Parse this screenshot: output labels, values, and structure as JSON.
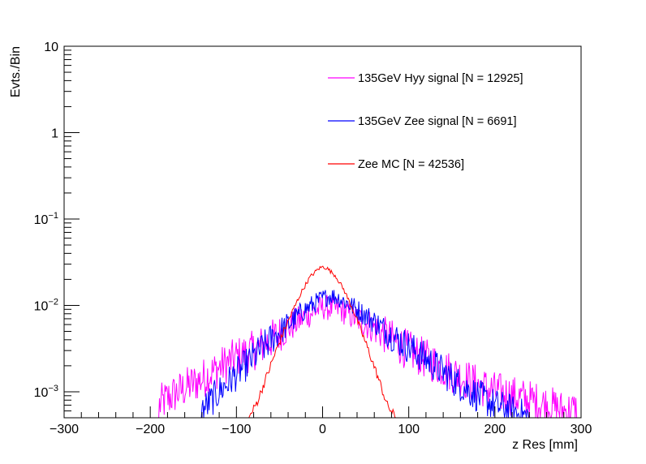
{
  "chart_data": {
    "type": "line",
    "title": "",
    "xlabel": "z Res [mm]",
    "ylabel": "Evts./Bin",
    "xlim": [
      -300,
      300
    ],
    "ylim": [
      0.0005,
      10
    ],
    "yscale": "log",
    "x_ticks": [
      -300,
      -200,
      -100,
      0,
      100,
      200,
      300
    ],
    "x_tick_labels": [
      "−300",
      "−200",
      "−100",
      "0",
      "100",
      "200",
      "300"
    ],
    "y_ticks": [
      {
        "value": 10,
        "base": "10",
        "exp": ""
      },
      {
        "value": 1,
        "base": "1",
        "exp": ""
      },
      {
        "value": 0.1,
        "base": "10",
        "exp": "−1"
      },
      {
        "value": 0.01,
        "base": "10",
        "exp": "−2"
      },
      {
        "value": 0.001,
        "base": "10",
        "exp": "−3"
      }
    ],
    "legend_position": "top-right",
    "series": [
      {
        "name": "135GeV Hyy signal [N = 12925]",
        "color": "#ff00ff",
        "x": [
          -190,
          -175,
          -160,
          -140,
          -120,
          -100,
          -80,
          -60,
          -40,
          -20,
          0,
          20,
          40,
          60,
          80,
          100,
          120,
          140,
          160,
          180,
          200,
          220,
          240,
          260,
          280,
          295
        ],
        "y": [
          0.0007,
          0.0009,
          0.0011,
          0.0014,
          0.0019,
          0.0025,
          0.003,
          0.004,
          0.0055,
          0.0075,
          0.0095,
          0.009,
          0.007,
          0.0055,
          0.004,
          0.003,
          0.0024,
          0.0019,
          0.0015,
          0.0012,
          0.001,
          0.0009,
          0.0008,
          0.0007,
          0.0006,
          0.0006
        ]
      },
      {
        "name": "135GeV Zee signal [N = 6691]",
        "color": "#0000ff",
        "x": [
          -140,
          -120,
          -100,
          -80,
          -60,
          -40,
          -20,
          0,
          10,
          20,
          40,
          60,
          80,
          100,
          120,
          140,
          160,
          180,
          200,
          220,
          240
        ],
        "y": [
          0.0006,
          0.001,
          0.0016,
          0.0025,
          0.004,
          0.006,
          0.009,
          0.012,
          0.013,
          0.012,
          0.009,
          0.0065,
          0.0045,
          0.0033,
          0.0024,
          0.0017,
          0.0012,
          0.0009,
          0.0007,
          0.0006,
          0.0005
        ]
      },
      {
        "name": "Zee MC [N = 42536]",
        "color": "#ff0000",
        "x": [
          -85,
          -75,
          -65,
          -55,
          -45,
          -35,
          -25,
          -15,
          -5,
          0,
          5,
          15,
          25,
          35,
          45,
          55,
          65,
          75,
          85
        ],
        "y": [
          0.0005,
          0.0008,
          0.0015,
          0.0028,
          0.005,
          0.0085,
          0.014,
          0.021,
          0.0265,
          0.028,
          0.027,
          0.022,
          0.015,
          0.009,
          0.005,
          0.0027,
          0.0014,
          0.0007,
          0.0005
        ]
      }
    ]
  }
}
